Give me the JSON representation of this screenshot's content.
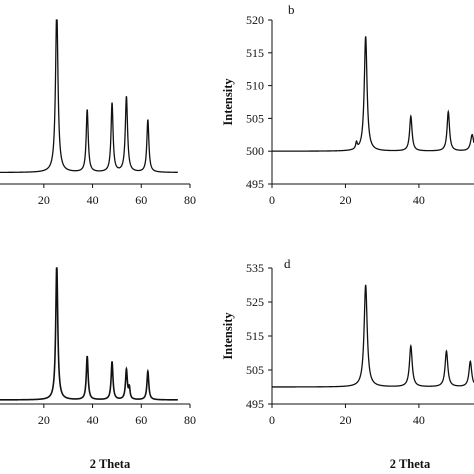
{
  "chart_data": [
    {
      "type": "line",
      "panel_label": "",
      "xlabel": "",
      "ylabel": "",
      "xlim": [
        2,
        80
      ],
      "ylim": [
        0,
        100
      ],
      "x_ticks": [
        20,
        40,
        60,
        80
      ],
      "y_ticks": [],
      "color": "#111111",
      "baseline": 7,
      "peaks": [
        {
          "x": 25.3,
          "height": 100,
          "width": 1.2
        },
        {
          "x": 37.8,
          "height": 38,
          "width": 1.0
        },
        {
          "x": 48.0,
          "height": 42,
          "width": 1.0
        },
        {
          "x": 53.9,
          "height": 46,
          "width": 1.1
        },
        {
          "x": 62.7,
          "height": 32,
          "width": 1.0
        }
      ]
    },
    {
      "type": "line",
      "panel_label": "b",
      "xlabel": "",
      "ylabel": "Intensity",
      "xlim": [
        0,
        55
      ],
      "ylim": [
        495,
        520
      ],
      "x_ticks": [
        0,
        20,
        40
      ],
      "y_ticks": [
        495,
        500,
        505,
        510,
        515,
        520
      ],
      "color": "#111111",
      "baseline": 500,
      "peaks": [
        {
          "x": 23.0,
          "height": 1.0,
          "width": 0.5
        },
        {
          "x": 25.5,
          "height": 17.5,
          "width": 0.9
        },
        {
          "x": 37.8,
          "height": 5.3,
          "width": 0.8
        },
        {
          "x": 48.0,
          "height": 6.0,
          "width": 0.8
        },
        {
          "x": 54.5,
          "height": 2.5,
          "width": 1.0
        }
      ]
    },
    {
      "type": "line",
      "panel_label": "",
      "xlabel": "2 Theta",
      "ylabel": "",
      "xlim": [
        2,
        80
      ],
      "ylim": [
        0,
        100
      ],
      "x_ticks": [
        20,
        40,
        60,
        80
      ],
      "y_ticks": [],
      "color": "#111111",
      "baseline": 3,
      "peaks": [
        {
          "x": 25.3,
          "height": 100,
          "width": 1.0
        },
        {
          "x": 37.8,
          "height": 32,
          "width": 0.9
        },
        {
          "x": 48.0,
          "height": 28,
          "width": 0.9
        },
        {
          "x": 53.9,
          "height": 22,
          "width": 0.9
        },
        {
          "x": 55.1,
          "height": 8,
          "width": 0.7
        },
        {
          "x": 62.7,
          "height": 21,
          "width": 0.9
        }
      ]
    },
    {
      "type": "line",
      "panel_label": "d",
      "xlabel": "2 Theta",
      "ylabel": "Intensity",
      "xlim": [
        0,
        55
      ],
      "ylim": [
        495,
        535
      ],
      "x_ticks": [
        0,
        20,
        40
      ],
      "y_ticks": [
        495,
        505,
        515,
        525,
        535
      ],
      "color": "#111111",
      "baseline": 500,
      "peaks": [
        {
          "x": 25.5,
          "height": 30,
          "width": 1.0
        },
        {
          "x": 37.8,
          "height": 12,
          "width": 0.9
        },
        {
          "x": 47.5,
          "height": 10.5,
          "width": 0.9
        },
        {
          "x": 54.0,
          "height": 7.5,
          "width": 0.9
        }
      ]
    }
  ]
}
